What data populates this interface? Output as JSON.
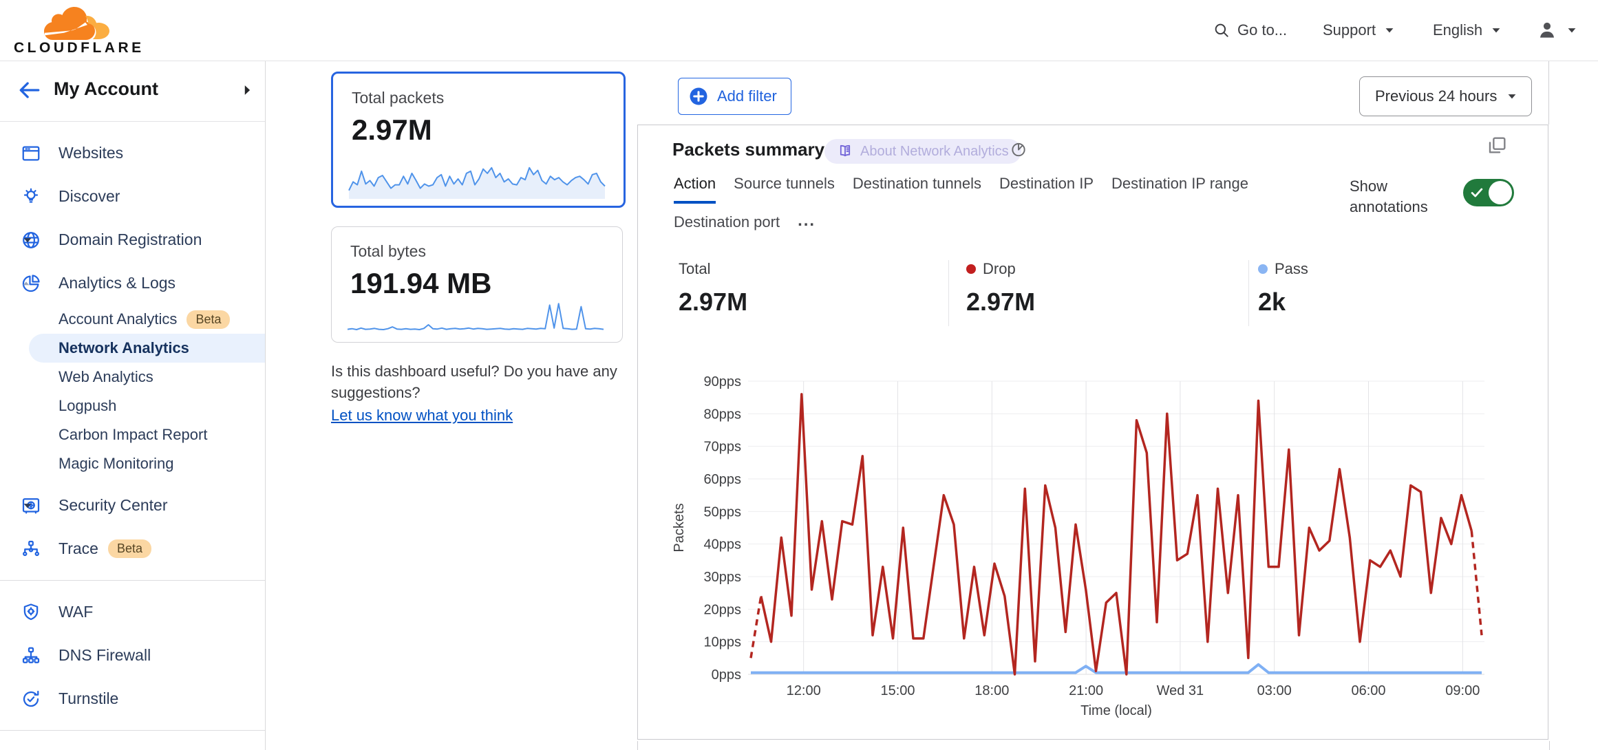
{
  "topnav": {
    "brand": "CLOUDFLARE",
    "goto_label": "Go to...",
    "support_label": "Support",
    "language_label": "English"
  },
  "sidebar": {
    "account_label": "My Account",
    "items": [
      {
        "label": "Websites",
        "icon": "browser-window-icon"
      },
      {
        "label": "Discover",
        "icon": "lightbulb-icon"
      },
      {
        "label": "Domain Registration",
        "icon": "globe-icon",
        "caret": "down"
      },
      {
        "label": "Analytics & Logs",
        "icon": "pie-chart-icon",
        "caret": "up"
      },
      {
        "label": "Account Analytics",
        "sub": true,
        "badge": "Beta"
      },
      {
        "label": "Network Analytics",
        "sub": true,
        "selected": true
      },
      {
        "label": "Web Analytics",
        "sub": true
      },
      {
        "label": "Logpush",
        "sub": true
      },
      {
        "label": "Carbon Impact Report",
        "sub": true
      },
      {
        "label": "Magic Monitoring",
        "sub": true
      },
      {
        "label": "Security Center",
        "icon": "safe-icon",
        "caret": "down",
        "gap_before": true
      },
      {
        "label": "Trace",
        "icon": "trace-tree-icon",
        "badge": "Beta"
      },
      {
        "divider": true
      },
      {
        "label": "WAF",
        "icon": "shield-gear-icon"
      },
      {
        "label": "DNS Firewall",
        "icon": "dns-tree-icon"
      },
      {
        "label": "Turnstile",
        "icon": "rotate-check-icon"
      },
      {
        "divider": true
      },
      {
        "label": "",
        "icon": "burst-icon",
        "partial": true
      }
    ]
  },
  "summary_cards": [
    {
      "title": "Total packets",
      "value": "2.97M",
      "selected": true,
      "spark": [
        15,
        35,
        28,
        60,
        30,
        38,
        25,
        45,
        50,
        35,
        20,
        28,
        28,
        48,
        30,
        55,
        38,
        20,
        30,
        25,
        28,
        45,
        52,
        25,
        48,
        30,
        42,
        28,
        55,
        60,
        28,
        42,
        65,
        55,
        68,
        45,
        55,
        35,
        42,
        30,
        28,
        45,
        40,
        68,
        52,
        62,
        38,
        30,
        48,
        40,
        45,
        35,
        28,
        38,
        45,
        48,
        40,
        30,
        52,
        55,
        35,
        25
      ]
    },
    {
      "title": "Total bytes",
      "value": "191.94 MB",
      "selected": false,
      "spark": [
        10,
        12,
        9,
        14,
        10,
        11,
        13,
        10,
        9,
        12,
        18,
        11,
        10,
        12,
        10,
        11,
        9,
        13,
        25,
        12,
        11,
        14,
        10,
        12,
        13,
        11,
        12,
        14,
        11,
        13,
        12,
        10,
        11,
        12,
        13,
        11,
        10,
        12,
        11,
        10,
        13,
        12,
        11,
        13,
        12,
        90,
        14,
        95,
        13,
        12,
        10,
        11,
        85,
        12,
        11,
        13,
        12,
        10
      ]
    }
  ],
  "feedback": {
    "question": "Is this dashboard useful? Do you have any suggestions?",
    "link_label": "Let us know what you think"
  },
  "toolbar": {
    "add_filter_label": "Add filter",
    "time_range_label": "Previous 24 hours"
  },
  "panel": {
    "title": "Packets summary",
    "about_badge": "About Network Analytics",
    "tabs": [
      "Action",
      "Source tunnels",
      "Destination tunnels",
      "Destination IP",
      "Destination IP range",
      "Destination port"
    ],
    "active_tab": "Action",
    "tabs_more": "...",
    "show_annotations_label": "Show annotations",
    "annotations_on": true,
    "stats": [
      {
        "label": "Total",
        "value": "2.97M",
        "dot_color": ""
      },
      {
        "label": "Drop",
        "value": "2.97M",
        "dot_color": "#c21f1f"
      },
      {
        "label": "Pass",
        "value": "2k",
        "dot_color": "#8ab5f3"
      }
    ]
  },
  "chart_data": {
    "type": "line",
    "title": "Packets summary",
    "xlabel": "Time (local)",
    "ylabel": "Packets",
    "ylim": [
      0,
      90
    ],
    "y_tick_labels": [
      "0pps",
      "10pps",
      "20pps",
      "30pps",
      "40pps",
      "50pps",
      "60pps",
      "70pps",
      "80pps",
      "90pps"
    ],
    "x_tick_labels": [
      "12:00",
      "15:00",
      "18:00",
      "21:00",
      "Wed 31",
      "03:00",
      "06:00",
      "09:00"
    ],
    "x_range_hours": 24,
    "grid": true,
    "series": [
      {
        "name": "Drop",
        "color": "#b32620",
        "style": "solid-with-dashed-ends",
        "values": [
          5,
          24,
          10,
          42,
          18,
          86,
          26,
          47,
          23,
          47,
          46,
          67,
          12,
          33,
          11,
          45,
          11,
          11,
          33,
          55,
          46,
          11,
          33,
          12,
          34,
          24,
          0,
          57,
          4,
          58,
          45,
          13,
          46,
          26,
          1,
          22,
          25,
          0,
          78,
          68,
          16,
          80,
          35,
          37,
          55,
          10,
          57,
          25,
          55,
          5,
          84,
          33,
          33,
          69,
          12,
          45,
          38,
          41,
          63,
          42,
          10,
          35,
          33,
          38,
          30,
          58,
          56,
          25,
          48,
          40,
          55,
          44,
          12
        ]
      },
      {
        "name": "Pass",
        "color": "#7fb0f4",
        "style": "solid",
        "values": [
          0.5,
          0.5,
          0.5,
          0.5,
          0.5,
          0.5,
          0.5,
          0.5,
          0.5,
          0.5,
          0.5,
          0.5,
          0.5,
          0.5,
          0.5,
          0.5,
          0.5,
          0.5,
          0.5,
          0.5,
          0.5,
          0.5,
          0.5,
          0.5,
          0.5,
          0.5,
          0.5,
          0.5,
          0.5,
          0.5,
          0.5,
          0.5,
          0.5,
          2.5,
          0.5,
          0.5,
          0.5,
          0.5,
          0.5,
          0.5,
          0.5,
          0.5,
          0.5,
          0.5,
          0.5,
          0.5,
          0.5,
          0.5,
          0.5,
          0.5,
          3,
          0.5,
          0.5,
          0.5,
          0.5,
          0.5,
          0.5,
          0.5,
          0.5,
          0.5,
          0.5,
          0.5,
          0.5,
          0.5,
          0.5,
          0.5,
          0.5,
          0.5,
          0.5,
          0.5,
          0.5,
          0.5,
          0.5
        ]
      }
    ]
  }
}
